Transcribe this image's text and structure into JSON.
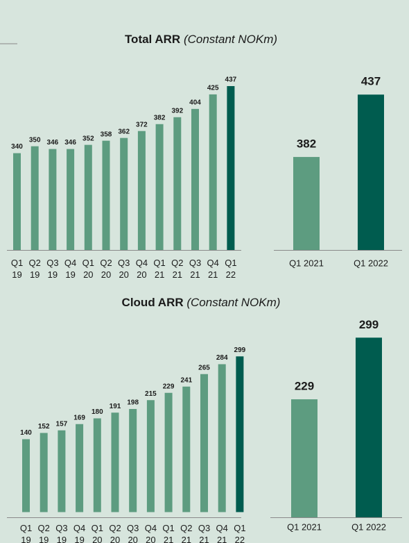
{
  "chart_data": [
    {
      "type": "bar",
      "title": "Total ARR",
      "subtitle": "(Constant NOKm)",
      "categories": [
        "Q1 19",
        "Q2 19",
        "Q3 19",
        "Q4 19",
        "Q1 20",
        "Q2 20",
        "Q3 20",
        "Q4 20",
        "Q1 21",
        "Q2 21",
        "Q3 21",
        "Q4 21",
        "Q1 22"
      ],
      "values": [
        340,
        350,
        346,
        346,
        352,
        358,
        362,
        372,
        382,
        392,
        404,
        425,
        437
      ],
      "colors": [
        "#5d9c80",
        "#5d9c80",
        "#5d9c80",
        "#5d9c80",
        "#5d9c80",
        "#5d9c80",
        "#5d9c80",
        "#5d9c80",
        "#5d9c80",
        "#5d9c80",
        "#5d9c80",
        "#5d9c80",
        "#005c4f"
      ],
      "ylim": [
        200,
        440
      ]
    },
    {
      "type": "bar",
      "categories": [
        "Q1 2021",
        "Q1 2022"
      ],
      "values": [
        382,
        437
      ],
      "colors": [
        "#5d9c80",
        "#005c4f"
      ],
      "ylim": [
        300,
        450
      ]
    },
    {
      "type": "bar",
      "title": "Cloud ARR",
      "subtitle": "(Constant NOKm)",
      "categories": [
        "Q1 19",
        "Q2 19",
        "Q3 19",
        "Q4 19",
        "Q1 20",
        "Q2 20",
        "Q3 20",
        "Q4 20",
        "Q1 21",
        "Q2 21",
        "Q3 21",
        "Q4 21",
        "Q1 22"
      ],
      "values": [
        140,
        152,
        157,
        169,
        180,
        191,
        198,
        215,
        229,
        241,
        265,
        284,
        299
      ],
      "colors": [
        "#5d9c80",
        "#5d9c80",
        "#5d9c80",
        "#5d9c80",
        "#5d9c80",
        "#5d9c80",
        "#5d9c80",
        "#5d9c80",
        "#5d9c80",
        "#5d9c80",
        "#5d9c80",
        "#5d9c80",
        "#005c4f"
      ],
      "ylim": [
        -10,
        310
      ]
    },
    {
      "type": "bar",
      "categories": [
        "Q1 2021",
        "Q1 2022"
      ],
      "values": [
        229,
        299
      ],
      "colors": [
        "#5d9c80",
        "#005c4f"
      ],
      "ylim": [
        95,
        300
      ]
    }
  ]
}
